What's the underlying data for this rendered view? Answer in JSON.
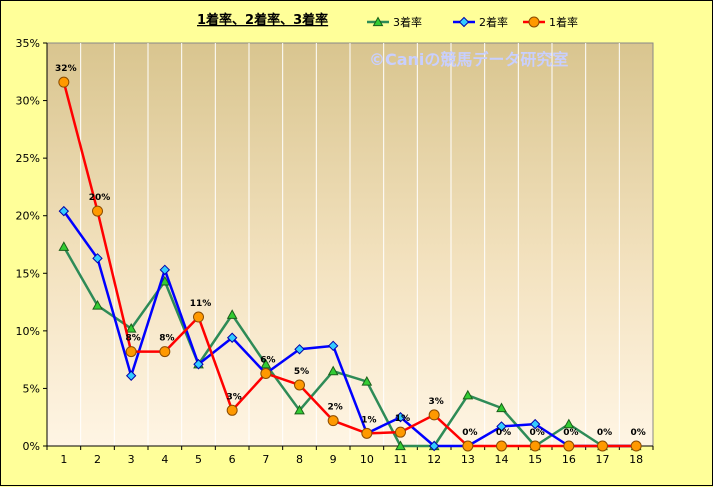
{
  "chart_data": {
    "type": "line",
    "title": "1着率、2着率、3着率",
    "watermark": "©Caniの競馬データ研究室",
    "x": [
      "1",
      "2",
      "3",
      "4",
      "5",
      "6",
      "7",
      "8",
      "9",
      "10",
      "11",
      "12",
      "13",
      "14",
      "15",
      "16",
      "17",
      "18"
    ],
    "ylim": [
      0,
      35
    ],
    "yticks": [
      0,
      5,
      10,
      15,
      20,
      25,
      30,
      35
    ],
    "ytick_labels": [
      "0%",
      "5%",
      "10%",
      "15%",
      "20%",
      "25%",
      "30%",
      "35%"
    ],
    "grid": "vertical",
    "legend_position": "top",
    "series": [
      {
        "name": "3着率",
        "color": "#2e8b57",
        "marker": "triangle",
        "marker_color": "#33cc33",
        "values": [
          17.3,
          12.2,
          10.2,
          14.3,
          7.1,
          11.4,
          7.1,
          3.1,
          6.5,
          5.6,
          0,
          0,
          4.4,
          3.3,
          0,
          1.9,
          0,
          0
        ]
      },
      {
        "name": "2着率",
        "color": "#0000ff",
        "marker": "diamond",
        "marker_color": "#33ccff",
        "values": [
          20.4,
          16.3,
          6.1,
          15.3,
          7.1,
          9.4,
          6.3,
          8.4,
          8.7,
          1.1,
          2.5,
          0,
          0,
          1.7,
          1.9,
          0,
          0,
          0
        ]
      },
      {
        "name": "1着率",
        "color": "#ff0000",
        "marker": "circle",
        "marker_color": "#ff9900",
        "values": [
          31.6,
          20.4,
          8.2,
          8.2,
          11.2,
          3.1,
          6.3,
          5.3,
          2.2,
          1.1,
          1.2,
          2.7,
          0,
          0,
          0,
          0,
          0,
          0
        ],
        "data_labels": [
          "32%",
          "20%",
          "8%",
          "8%",
          "11%",
          "3%",
          "6%",
          "5%",
          "2%",
          "1%",
          "1%",
          "3%",
          "0%",
          "0%",
          "0%",
          "0%",
          "0%",
          "0%"
        ]
      }
    ]
  }
}
